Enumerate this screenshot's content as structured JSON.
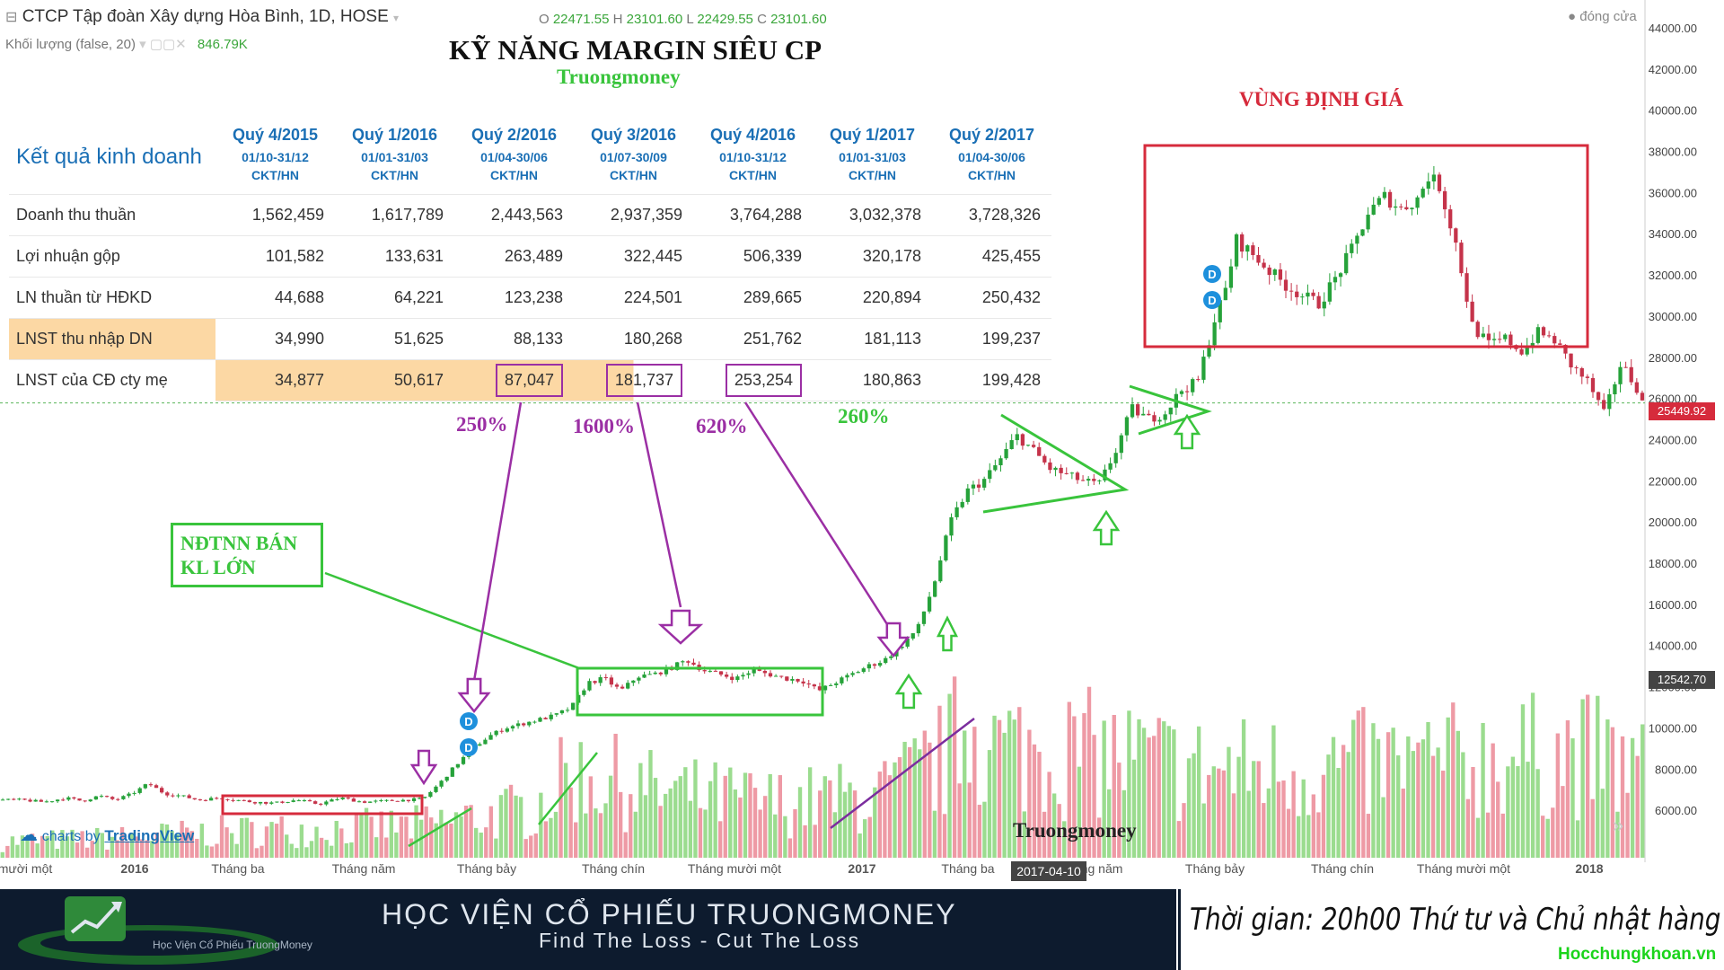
{
  "header": {
    "symbol": "CTCP Tập đoàn Xây dựng Hòa Bình, 1D, HOSE",
    "ohlc": {
      "o_label": "O",
      "o": "22471.55",
      "h_label": "H",
      "h": "23101.60",
      "l_label": "L",
      "l": "22429.55",
      "c_label": "C",
      "c": "23101.60"
    },
    "volume_label": "Khối lượng (false, 20)",
    "volume_value": "846.79K",
    "close_label": "đóng cửa"
  },
  "title": "KỸ NĂNG MARGIN SIÊU CP",
  "brand": "Truongmoney",
  "zone_title": "VÙNG ĐỊNH GIÁ",
  "table": {
    "heading": "Kết quả kinh doanh",
    "columns": [
      {
        "q": "Quý 4/2015",
        "d": "01/10-31/12",
        "c": "CKT/HN"
      },
      {
        "q": "Quý 1/2016",
        "d": "01/01-31/03",
        "c": "CKT/HN"
      },
      {
        "q": "Quý 2/2016",
        "d": "01/04-30/06",
        "c": "CKT/HN"
      },
      {
        "q": "Quý 3/2016",
        "d": "01/07-30/09",
        "c": "CKT/HN"
      },
      {
        "q": "Quý 4/2016",
        "d": "01/10-31/12",
        "c": "CKT/HN"
      },
      {
        "q": "Quý 1/2017",
        "d": "01/01-31/03",
        "c": "CKT/HN"
      },
      {
        "q": "Quý 2/2017",
        "d": "01/04-30/06",
        "c": "CKT/HN"
      }
    ],
    "rows": [
      {
        "label": "Doanh thu thuần",
        "values": [
          "1,562,459",
          "1,617,789",
          "2,443,563",
          "2,937,359",
          "3,764,288",
          "3,032,378",
          "3,728,326"
        ]
      },
      {
        "label": "Lợi nhuận gộp",
        "values": [
          "101,582",
          "133,631",
          "263,489",
          "322,445",
          "506,339",
          "320,178",
          "425,455"
        ]
      },
      {
        "label": "LN thuần từ HĐKD",
        "values": [
          "44,688",
          "64,221",
          "123,238",
          "224,501",
          "289,665",
          "220,894",
          "250,432"
        ]
      },
      {
        "label": "LNST thu nhập DN",
        "values": [
          "34,990",
          "51,625",
          "88,133",
          "180,268",
          "251,762",
          "181,113",
          "199,237"
        ]
      },
      {
        "label": "LNST của CĐ cty mẹ",
        "values": [
          "34,877",
          "50,617",
          "87,047",
          "181,737",
          "253,254",
          "180,863",
          "199,428"
        ]
      }
    ]
  },
  "growth": [
    {
      "text": "250%",
      "color": "#9b2fa4"
    },
    {
      "text": "1600%",
      "color": "#9b2fa4"
    },
    {
      "text": "620%",
      "color": "#9b2fa4"
    },
    {
      "text": "260%",
      "color": "#39c43c"
    }
  ],
  "annotation_box": "NĐTNN BÁN KL LỚN",
  "tradingview": {
    "prefix": "charts by",
    "name": "TradingView"
  },
  "watermark": "Truongmoney",
  "price_tags": {
    "last": "25449.92",
    "cross": "12542.70"
  },
  "date_tag": "2017-04-10",
  "banner": {
    "main": "HỌC VIỆN CỔ PHIẾU TRUONGMONEY",
    "tagline": "Find The Loss - Cut The Loss",
    "small": "Học Viện Cổ Phiếu TruongMoney",
    "schedule": "Thời gian: 20h00 Thứ tư và Chủ nhật hàng tuần",
    "website": "Hocchungkhoan.vn"
  },
  "colors": {
    "up": "#26a23a",
    "down": "#c5334a",
    "vol_up": "#9bdc8f",
    "vol_down": "#ee9aa5",
    "box_red": "#d62b3c",
    "box_green": "#39c43c",
    "purple": "#9b2fa4"
  },
  "chart_data": {
    "type": "candlestick",
    "title": "CTCP Tập đoàn Xây dựng Hòa Bình, 1D, HOSE",
    "ylim": [
      4000,
      45000
    ],
    "y_ticks": [
      6000,
      8000,
      10000,
      12000,
      14000,
      16000,
      18000,
      20000,
      22000,
      24000,
      26000,
      28000,
      30000,
      32000,
      34000,
      36000,
      38000,
      40000,
      42000,
      44000
    ],
    "x_tick_labels": [
      "mười một",
      "2016",
      "Tháng ba",
      "Tháng năm",
      "Tháng bảy",
      "Tháng chín",
      "Tháng mười một",
      "2017",
      "Tháng ba",
      "Tháng năm",
      "Tháng bảy",
      "Tháng chín",
      "Tháng mười một",
      "2018"
    ],
    "price_path": [
      [
        0,
        6500
      ],
      [
        20,
        6500
      ],
      [
        40,
        6400
      ],
      [
        60,
        6600
      ],
      [
        75,
        6450
      ],
      [
        90,
        6700
      ],
      [
        105,
        6500
      ],
      [
        120,
        6800
      ],
      [
        135,
        7300
      ],
      [
        150,
        6800
      ],
      [
        165,
        6700
      ],
      [
        180,
        6500
      ],
      [
        200,
        6600
      ],
      [
        215,
        6500
      ],
      [
        230,
        6400
      ],
      [
        250,
        6350
      ],
      [
        270,
        6500
      ],
      [
        290,
        6300
      ],
      [
        310,
        6600
      ],
      [
        330,
        6400
      ],
      [
        350,
        6450
      ],
      [
        370,
        6500
      ],
      [
        385,
        6550
      ],
      [
        400,
        7300
      ],
      [
        415,
        8200
      ],
      [
        430,
        9000
      ],
      [
        445,
        9600
      ],
      [
        460,
        10000
      ],
      [
        475,
        10200
      ],
      [
        490,
        10400
      ],
      [
        505,
        10600
      ],
      [
        520,
        11000
      ],
      [
        535,
        12200
      ],
      [
        550,
        12400
      ],
      [
        565,
        11800
      ],
      [
        580,
        12500
      ],
      [
        595,
        12600
      ],
      [
        610,
        12900
      ],
      [
        625,
        13300
      ],
      [
        640,
        12800
      ],
      [
        655,
        12600
      ],
      [
        670,
        12400
      ],
      [
        685,
        12800
      ],
      [
        700,
        12600
      ],
      [
        715,
        12400
      ],
      [
        730,
        12300
      ],
      [
        745,
        11800
      ],
      [
        760,
        12200
      ],
      [
        775,
        12600
      ],
      [
        790,
        13000
      ],
      [
        805,
        13300
      ],
      [
        820,
        14000
      ],
      [
        835,
        14800
      ],
      [
        850,
        17000
      ],
      [
        865,
        20000
      ],
      [
        880,
        21500
      ],
      [
        895,
        22000
      ],
      [
        910,
        23000
      ],
      [
        925,
        24200
      ],
      [
        940,
        23500
      ],
      [
        955,
        22600
      ],
      [
        970,
        22300
      ],
      [
        985,
        22000
      ],
      [
        1000,
        21800
      ],
      [
        1015,
        23400
      ],
      [
        1030,
        25500
      ],
      [
        1045,
        25000
      ],
      [
        1060,
        25300
      ],
      [
        1075,
        26400
      ],
      [
        1090,
        26800
      ],
      [
        1105,
        29800
      ],
      [
        1115,
        31200
      ],
      [
        1125,
        33700
      ],
      [
        1140,
        33000
      ],
      [
        1155,
        32200
      ],
      [
        1170,
        31500
      ],
      [
        1185,
        31000
      ],
      [
        1200,
        30600
      ],
      [
        1215,
        31800
      ],
      [
        1230,
        33200
      ],
      [
        1245,
        35000
      ],
      [
        1260,
        35800
      ],
      [
        1275,
        35200
      ],
      [
        1290,
        35700
      ],
      [
        1300,
        36800
      ],
      [
        1310,
        36300
      ],
      [
        1325,
        33500
      ],
      [
        1340,
        29500
      ],
      [
        1355,
        28600
      ],
      [
        1370,
        28900
      ],
      [
        1385,
        28300
      ],
      [
        1400,
        29200
      ],
      [
        1415,
        28800
      ],
      [
        1430,
        27600
      ],
      [
        1445,
        26800
      ],
      [
        1460,
        25200
      ],
      [
        1475,
        27700
      ],
      [
        1490,
        26500
      ],
      [
        1497,
        25400
      ]
    ],
    "volume_path": [
      [
        0,
        5000
      ],
      [
        100,
        5200
      ],
      [
        200,
        5600
      ],
      [
        300,
        5800
      ],
      [
        380,
        6000
      ],
      [
        420,
        6400
      ],
      [
        480,
        7000
      ],
      [
        520,
        9200
      ],
      [
        550,
        8800
      ],
      [
        600,
        8000
      ],
      [
        700,
        7400
      ],
      [
        800,
        7800
      ],
      [
        860,
        10200
      ],
      [
        880,
        12800
      ],
      [
        900,
        10800
      ],
      [
        1000,
        10400
      ],
      [
        1100,
        9400
      ],
      [
        1200,
        9600
      ],
      [
        1300,
        9800
      ],
      [
        1360,
        10200
      ],
      [
        1440,
        10400
      ],
      [
        1497,
        9200
      ]
    ],
    "annotations": [
      {
        "type": "zone",
        "label": "VÙNG ĐỊNH GIÁ",
        "x": [
          1043,
          1443
        ],
        "y": [
          28300,
          38000
        ]
      },
      {
        "type": "base",
        "x": [
          202,
          383
        ],
        "y": [
          6200,
          7200
        ]
      },
      {
        "type": "base",
        "x": [
          525,
          748
        ],
        "y": [
          11700,
          13900
        ]
      },
      {
        "type": "triangle",
        "x": [
          895,
          1025
        ]
      },
      {
        "type": "triangle",
        "x": [
          1028,
          1097
        ]
      }
    ]
  }
}
